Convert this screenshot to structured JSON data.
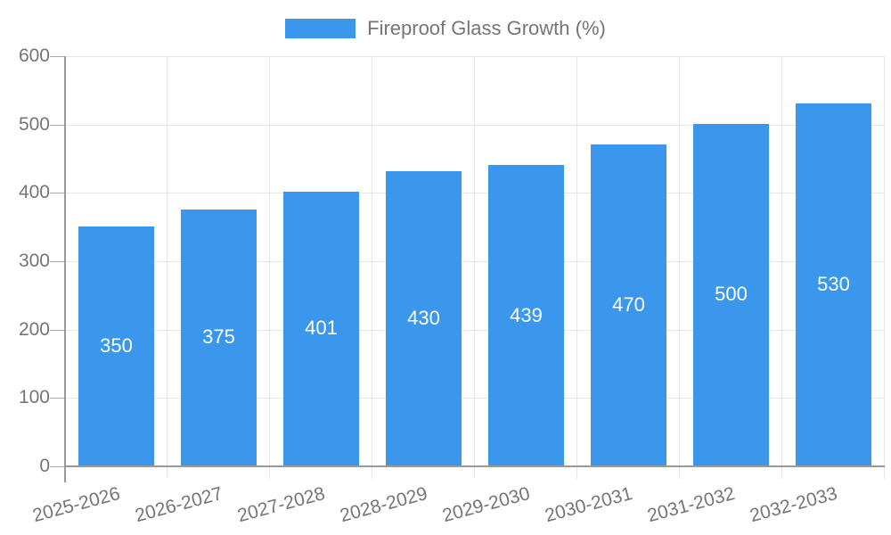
{
  "legend": {
    "label": "Fireproof Glass Growth (%)",
    "swatch_color": "#3b97ec"
  },
  "chart_data": {
    "type": "bar",
    "title": "",
    "xlabel": "",
    "ylabel": "",
    "categories": [
      "2025-2026",
      "2026-2027",
      "2027-2028",
      "2028-2029",
      "2029-2030",
      "2030-2031",
      "2031-2032",
      "2032-2033"
    ],
    "series": [
      {
        "name": "Fireproof Glass Growth (%)",
        "values": [
          350,
          375,
          401,
          430,
          439,
          470,
          500,
          530
        ],
        "bar_labels": [
          "350",
          "375",
          "401",
          "430",
          "439",
          "470",
          "500",
          "530"
        ],
        "color": "#3b97ec"
      }
    ],
    "ylim": [
      0,
      600
    ],
    "yticks": [
      0,
      100,
      200,
      300,
      400,
      500,
      600
    ],
    "grid": true,
    "legend_position": "top",
    "colors": {
      "bar": "#3b97ec",
      "bar_label_text": "#ffffff",
      "axis_text": "#757575",
      "gridline": "#e6e6e6",
      "axis_line": "#999999",
      "background": "#ffffff"
    }
  }
}
